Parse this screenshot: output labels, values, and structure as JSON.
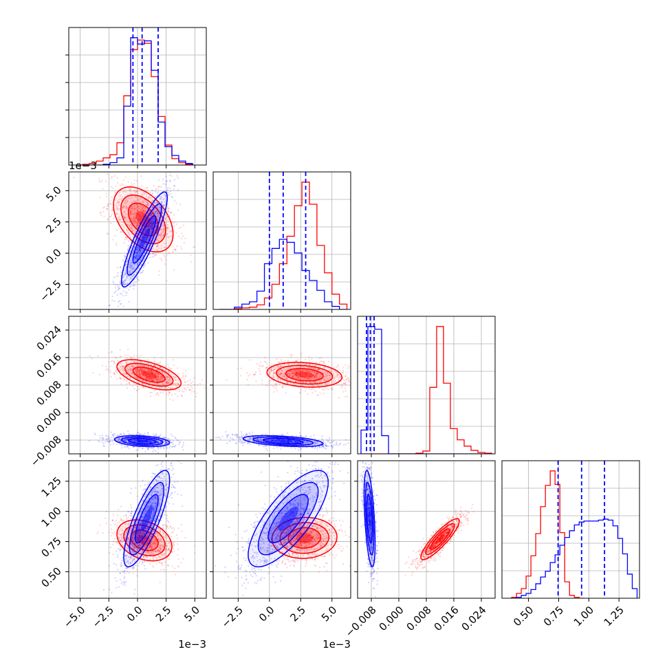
{
  "chart_data": {
    "type": "corner",
    "parameters": [
      {
        "id": "p0",
        "range": [
          -6.0,
          6.0
        ],
        "ticks": [
          -5.0,
          -2.5,
          0.0,
          2.5,
          5.0
        ],
        "tick_labels": [
          "−5.0",
          "−2.5",
          "0.0",
          "2.5",
          "5.0"
        ],
        "offset_label": "1e−3"
      },
      {
        "id": "p1",
        "range": [
          -4.5,
          6.5
        ],
        "ticks": [
          -2.5,
          0.0,
          2.5,
          5.0
        ],
        "tick_labels": [
          "−2.5",
          "0.0",
          "2.5",
          "5.0"
        ],
        "offset_label": "1e−3"
      },
      {
        "id": "p2",
        "range": [
          -0.012,
          0.028
        ],
        "ticks": [
          -0.008,
          0.0,
          0.008,
          0.016,
          0.024
        ],
        "tick_labels": [
          "−0.008",
          "0.000",
          "0.008",
          "0.016",
          "0.024"
        ],
        "offset_label": ""
      },
      {
        "id": "p3",
        "range": [
          0.28,
          1.42
        ],
        "ticks": [
          0.5,
          0.75,
          1.0,
          1.25
        ],
        "tick_labels": [
          "0.50",
          "0.75",
          "1.00",
          "1.25"
        ],
        "offset_label": ""
      }
    ],
    "series": [
      {
        "color": "#ff0000",
        "marginals": [
          {
            "bins": [
              -4.8,
              -4.2,
              -3.6,
              -3.0,
              -2.4,
              -1.8,
              -1.2,
              -0.6,
              0.0,
              0.6,
              1.2,
              1.8,
              2.4,
              3.0,
              3.6,
              4.2,
              4.8
            ],
            "counts": [
              1,
              2,
              5,
              9,
              13,
              28,
              87,
              145,
              157,
              153,
              111,
              61,
              25,
              8,
              3,
              1
            ]
          },
          {
            "bins": [
              -4.0,
              -3.4,
              -2.8,
              -2.2,
              -1.6,
              -1.0,
              -0.4,
              0.2,
              0.8,
              1.4,
              2.0,
              2.6,
              3.2,
              3.8,
              4.4,
              5.0,
              5.6,
              6.2
            ],
            "counts": [
              0,
              0,
              1,
              2,
              3,
              6,
              15,
              33,
              60,
              96,
              136,
              167,
              138,
              84,
              48,
              20,
              7
            ]
          },
          {
            "bins": [
              -0.011,
              -0.009,
              -0.007,
              -0.005,
              -0.003,
              -0.001,
              0.001,
              0.003,
              0.005,
              0.007,
              0.009,
              0.011,
              0.013,
              0.015,
              0.017,
              0.019,
              0.021,
              0.023,
              0.025,
              0.027
            ],
            "counts": [
              0,
              0,
              0,
              0,
              0,
              0,
              0,
              0,
              1,
              4,
              95,
              182,
              101,
              36,
              20,
              11,
              5,
              2,
              1
            ]
          },
          {
            "bins": [
              0.36,
              0.4,
              0.44,
              0.48,
              0.52,
              0.56,
              0.6,
              0.64,
              0.68,
              0.72,
              0.76,
              0.8,
              0.84,
              0.88,
              0.92,
              0.96
            ],
            "counts": [
              1,
              5,
              10,
              23,
              44,
              67,
              95,
              117,
              132,
              118,
              68,
              17,
              3,
              1,
              0
            ]
          }
        ],
        "pairs": [
          {
            "x": 0,
            "y": 1,
            "center": [
              0.5,
              2.7
            ],
            "sigma": [
              1.3,
              1.3
            ],
            "rho": -0.45
          },
          {
            "x": 0,
            "y": 2,
            "center": [
              1.0,
              0.011
            ],
            "sigma": [
              1.4,
              0.0022
            ],
            "rho": -0.55
          },
          {
            "x": 1,
            "y": 2,
            "center": [
              2.8,
              0.011
            ],
            "sigma": [
              1.5,
              0.0018
            ],
            "rho": -0.2
          },
          {
            "x": 0,
            "y": 3,
            "center": [
              0.6,
              0.76
            ],
            "sigma": [
              1.2,
              0.085
            ],
            "rho": -0.3
          },
          {
            "x": 1,
            "y": 3,
            "center": [
              2.8,
              0.78
            ],
            "sigma": [
              1.3,
              0.085
            ],
            "rho": 0.05
          },
          {
            "x": 2,
            "y": 3,
            "center": [
              0.012,
              0.77
            ],
            "sigma": [
              0.0028,
              0.085
            ],
            "rho": 0.88
          }
        ]
      },
      {
        "color": "#0000ff",
        "quantiles": [
          [
            -0.4,
            0.4,
            1.8
          ],
          [
            0.0,
            1.1,
            2.9
          ],
          [
            -0.0094,
            -0.0083,
            -0.0072
          ],
          [
            0.745,
            0.94,
            1.13
          ]
        ],
        "marginals": [
          {
            "bins": [
              -4.8,
              -4.2,
              -3.6,
              -3.0,
              -2.4,
              -1.8,
              -1.2,
              -0.6,
              0.0,
              0.6,
              1.2,
              1.8,
              2.4,
              3.0,
              3.6,
              4.2,
              4.8
            ],
            "counts": [
              0,
              0,
              0,
              1,
              3,
              9,
              74,
              160,
              152,
              156,
              119,
              54,
              23,
              12,
              5,
              2
            ]
          },
          {
            "bins": [
              -4.0,
              -3.4,
              -2.8,
              -2.2,
              -1.6,
              -1.0,
              -0.4,
              0.2,
              0.8,
              1.4,
              2.0,
              2.6,
              3.2,
              3.8,
              4.4,
              5.0,
              5.6,
              6.2
            ],
            "counts": [
              0,
              0,
              3,
              7,
              10,
              24,
              60,
              80,
              92,
              88,
              74,
              51,
              38,
              25,
              10,
              4,
              0
            ]
          },
          {
            "bins": [
              -0.011,
              -0.009,
              -0.007,
              -0.005,
              -0.003,
              -0.001,
              0.001,
              0.003,
              0.005,
              0.007,
              0.009,
              0.011,
              0.013,
              0.015,
              0.017,
              0.019,
              0.021,
              0.023,
              0.025,
              0.027
            ],
            "counts": [
              34,
              182,
              178,
              26,
              0,
              0,
              0,
              0,
              0,
              0,
              0,
              0,
              0,
              0,
              0,
              0,
              0,
              0,
              0
            ]
          },
          {
            "bins": [
              0.36,
              0.4,
              0.44,
              0.48,
              0.52,
              0.56,
              0.6,
              0.64,
              0.68,
              0.72,
              0.76,
              0.8,
              0.84,
              0.88,
              0.92,
              0.96,
              1.0,
              1.04,
              1.08,
              1.12,
              1.16,
              1.2,
              1.24,
              1.28,
              1.32,
              1.36,
              1.4
            ],
            "counts": [
              0,
              1,
              3,
              5,
              9,
              15,
              22,
              28,
              37,
              45,
              55,
              63,
              70,
              76,
              79,
              80,
              80,
              80,
              81,
              82,
              81,
              75,
              62,
              46,
              25,
              10
            ]
          }
        ],
        "pairs": [
          {
            "x": 0,
            "y": 1,
            "center": [
              0.6,
              1.1
            ],
            "sigma": [
              1.0,
              1.9
            ],
            "rho": 0.88
          },
          {
            "x": 0,
            "y": 2,
            "center": [
              0.4,
              -0.0083
            ],
            "sigma": [
              1.2,
              0.0008
            ],
            "rho": -0.3
          },
          {
            "x": 1,
            "y": 2,
            "center": [
              1.1,
              -0.0083
            ],
            "sigma": [
              1.6,
              0.0008
            ],
            "rho": -0.45
          },
          {
            "x": 0,
            "y": 3,
            "center": [
              0.8,
              0.94
            ],
            "sigma": [
              1.0,
              0.2
            ],
            "rho": 0.8
          },
          {
            "x": 1,
            "y": 3,
            "center": [
              1.5,
              0.94
            ],
            "sigma": [
              1.6,
              0.2
            ],
            "rho": 0.75
          },
          {
            "x": 2,
            "y": 3,
            "center": [
              -0.0085,
              0.94
            ],
            "sigma": [
              0.0008,
              0.2
            ],
            "rho": -0.5
          }
        ]
      }
    ],
    "grid": true
  }
}
